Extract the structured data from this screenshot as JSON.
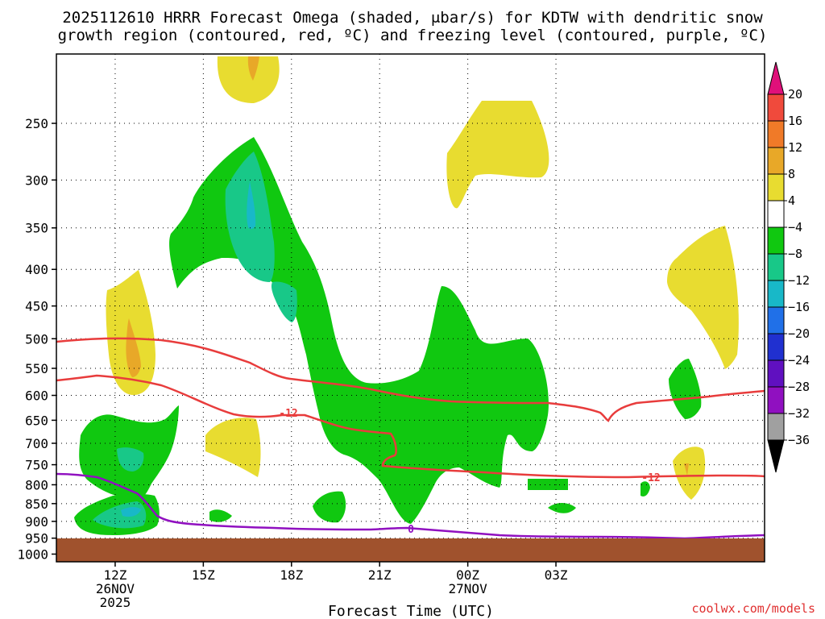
{
  "chart_data": {
    "type": "time-height contour",
    "title_line1": "2025112610 HRRR Forecast Omega (shaded, μbar/s) for KDTW with dendritic snow",
    "title_line2": "growth region (contoured, red, ºC) and freezing level (contoured, purple, ºC)",
    "xlabel": "Forecast Time (UTC)",
    "ylabel": "",
    "credit": "coolwx.com/models",
    "y_axis": {
      "units": "hPa",
      "ticks": [
        250,
        300,
        350,
        400,
        450,
        500,
        550,
        600,
        650,
        700,
        750,
        800,
        850,
        900,
        950,
        1000
      ],
      "range": [
        200,
        1025
      ]
    },
    "x_axis": {
      "range_hours": [
        10,
        34.1
      ],
      "ticks": [
        {
          "hour": 12,
          "line1": "12Z",
          "line2": "26NOV",
          "line3": "2025"
        },
        {
          "hour": 15,
          "line1": "15Z",
          "line2": "",
          "line3": ""
        },
        {
          "hour": 18,
          "line1": "18Z",
          "line2": "",
          "line3": ""
        },
        {
          "hour": 21,
          "line1": "21Z",
          "line2": "",
          "line3": ""
        },
        {
          "hour": 24,
          "line1": "00Z",
          "line2": "27NOV",
          "line3": ""
        },
        {
          "hour": 27,
          "line1": "03Z",
          "line2": "",
          "line3": ""
        }
      ]
    },
    "colorbar": {
      "levels": [
        20,
        16,
        12,
        8,
        4,
        -4,
        -8,
        -12,
        -16,
        -20,
        -24,
        -28,
        -32,
        -36
      ],
      "colors": [
        "#e0107a",
        "#f04a3c",
        "#f07a28",
        "#e8a828",
        "#e8dc30",
        "#ffffff",
        "#10c810",
        "#18c888",
        "#18b8c8",
        "#2070e8",
        "#2030d0",
        "#6010c0",
        "#9010c0",
        "#a0a0a0",
        "#000000"
      ]
    },
    "contours": {
      "dendritic_upper": {
        "label": "-12",
        "color": "#e83c3c"
      },
      "dendritic_lower": {
        "label": "-12",
        "color": "#e83c3c"
      },
      "freezing_level": {
        "label": "0",
        "color": "#9010c0"
      }
    },
    "terrain_color": "#a0522d"
  }
}
